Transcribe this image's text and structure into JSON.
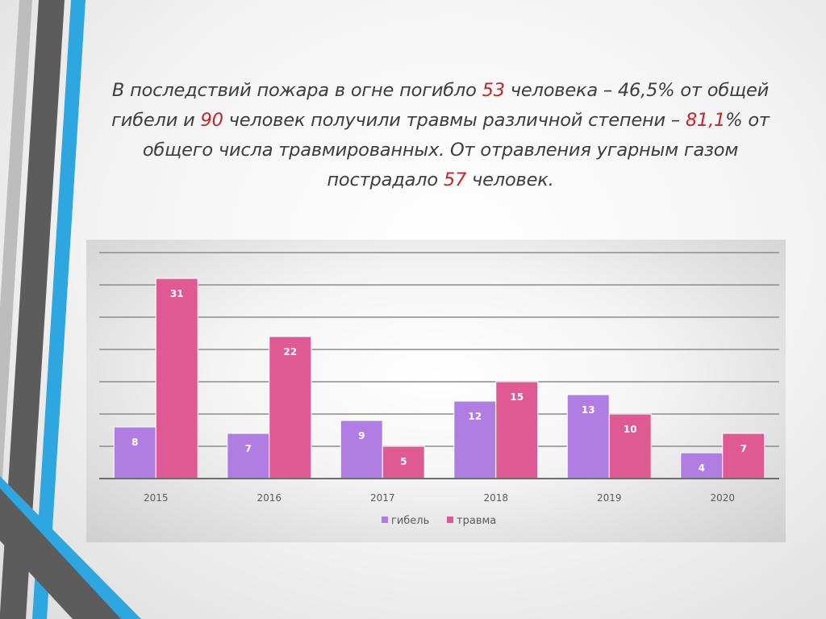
{
  "heading": {
    "p1": "В последствий пожара в огне погибло ",
    "n1": "53",
    "p2": " человека – 46,5% от общей гибели и ",
    "n2": "90",
    "p3": " человек получили травмы различной степени – ",
    "n3": "81,1",
    "p4": "% от общего числа травмированных. От отравления угарным газом пострадало ",
    "n4": "57",
    "p5": " человек."
  },
  "colors": {
    "highlight": "#c0262b",
    "series_death": "#b07ee3",
    "series_injury": "#df5a92",
    "deco_blue": "#2ea7e0",
    "deco_gray": "#5c5c5c"
  },
  "chart_data": {
    "type": "bar",
    "categories": [
      "2015",
      "2016",
      "2017",
      "2018",
      "2019",
      "2020"
    ],
    "series": [
      {
        "name": "гибель",
        "values": [
          8,
          7,
          9,
          12,
          13,
          4
        ]
      },
      {
        "name": "травма",
        "values": [
          31,
          22,
          5,
          15,
          10,
          7
        ]
      }
    ],
    "ylim": [
      0,
      35
    ],
    "grid": true,
    "legend": "bottom",
    "data_labels": true
  }
}
